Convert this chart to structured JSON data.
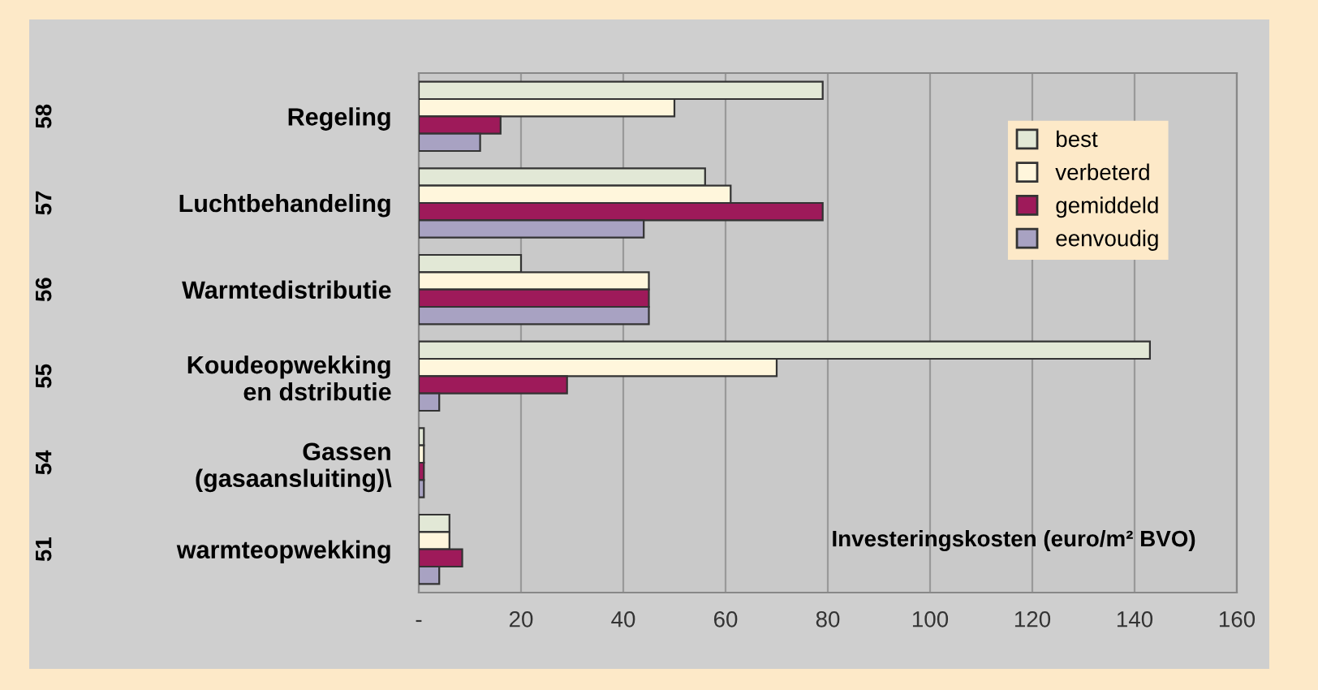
{
  "chart_data": {
    "type": "bar",
    "orientation": "horizontal",
    "categories": [
      "Regeling",
      "Luchtbehandeling",
      "Warmtedistributie",
      "Koudeopwekking\nen dstributie",
      "Gassen\n(gasaansluiting)\\",
      "warmteopwekking"
    ],
    "series": [
      {
        "name": "best",
        "color": "#e2e8d6",
        "values": [
          79,
          56,
          20,
          143,
          1,
          6
        ]
      },
      {
        "name": "verbeterd",
        "color": "#fff6dc",
        "values": [
          50,
          61,
          45,
          70,
          1,
          6
        ]
      },
      {
        "name": "gemiddeld",
        "color": "#9e1a5a",
        "values": [
          16,
          79,
          45,
          29,
          1,
          8.5
        ]
      },
      {
        "name": "eenvoudig",
        "color": "#a8a2c2",
        "values": [
          12,
          44,
          45,
          4,
          1,
          4
        ]
      }
    ],
    "xlabel": "Investeringskosten (euro/m² BVO)",
    "annotations": [
      "58",
      "57",
      "56",
      "55",
      "54",
      "51"
    ],
    "xlim": [
      0,
      160
    ],
    "xticks": [
      {
        "value": 0,
        "label": "-"
      },
      20,
      40,
      60,
      80,
      100,
      120,
      140,
      160
    ],
    "grid": "x",
    "legend": "top right"
  }
}
